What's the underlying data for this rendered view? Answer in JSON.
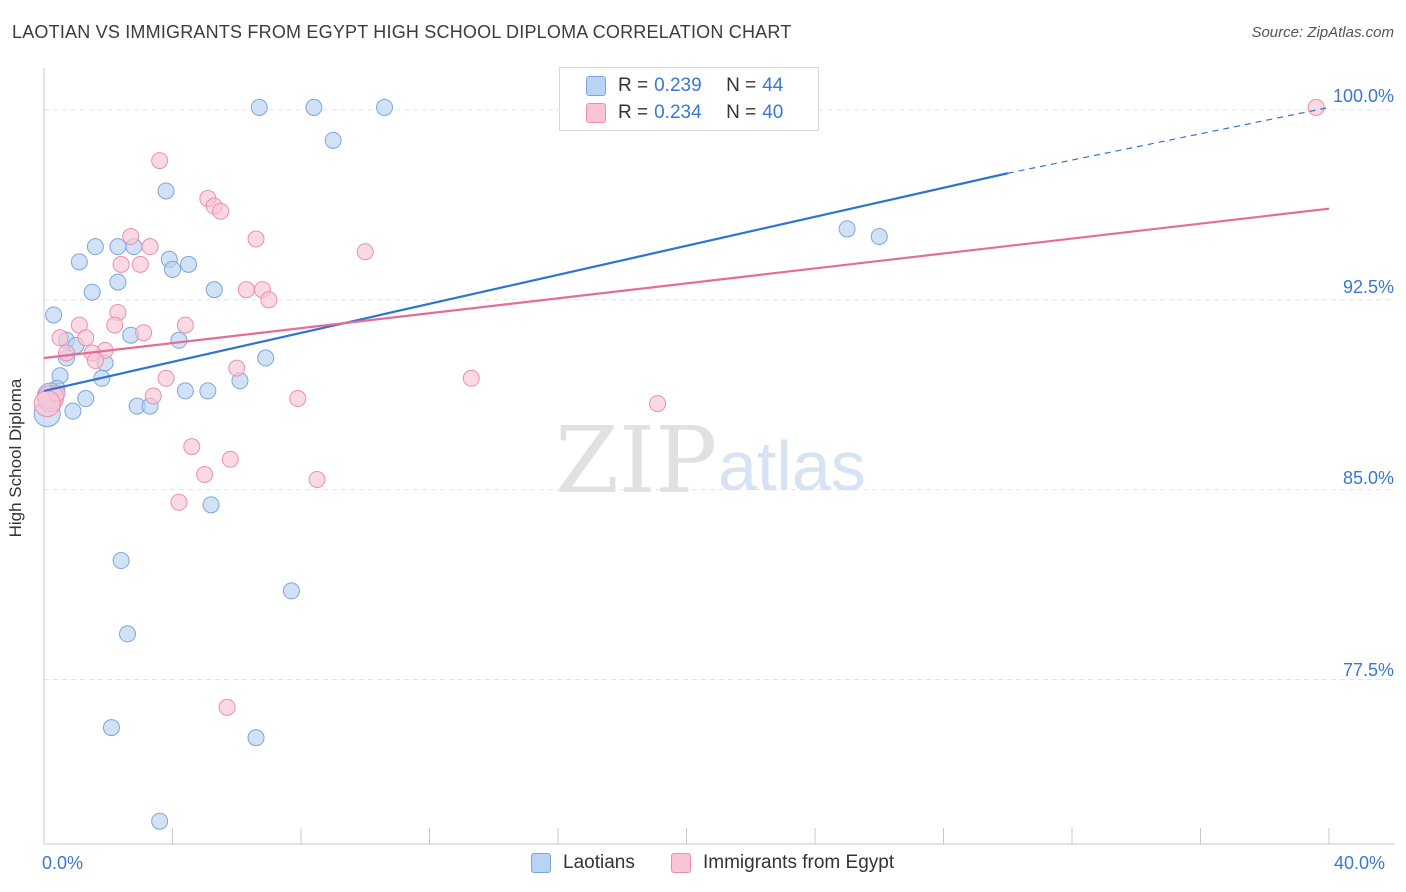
{
  "title": "LAOTIAN VS IMMIGRANTS FROM EGYPT HIGH SCHOOL DIPLOMA CORRELATION CHART",
  "source": "Source: ZipAtlas.com",
  "watermark": {
    "zip": "ZIP",
    "atlas": "atlas"
  },
  "legend": {
    "rows": [
      {
        "r_label": "R = ",
        "r_value": "0.239",
        "n_label": "N = ",
        "n_value": "44"
      },
      {
        "r_label": "R = ",
        "r_value": "0.234",
        "n_label": "N = ",
        "n_value": "40"
      }
    ]
  },
  "colors": {
    "laotian_fill": "#b9d3f3",
    "laotian_stroke": "#7aa6de",
    "laotian_line": "#2e74d0",
    "egypt_fill": "#f9c4d4",
    "egypt_stroke": "#eb8fae",
    "egypt_line": "#e56b99",
    "tick_text": "#3a78d0",
    "grid": "#e4e4e4"
  },
  "chart_data": {
    "type": "scatter",
    "title": "LAOTIAN VS IMMIGRANTS FROM EGYPT HIGH SCHOOL DIPLOMA CORRELATION CHART",
    "xlabel": "",
    "ylabel": "High School Diploma",
    "xlim": [
      0,
      40
    ],
    "ylim": [
      71.0,
      101.5
    ],
    "x_tick_labels": [
      "0.0%",
      "40.0%"
    ],
    "y_ticks": [
      77.5,
      85.0,
      92.5,
      100.0
    ],
    "y_tick_labels": [
      "77.5%",
      "85.0%",
      "92.5%",
      "100.0%"
    ],
    "grid": true,
    "series": [
      {
        "name": "Laotians",
        "R": 0.239,
        "N": 44,
        "trend": {
          "x0": 0,
          "y0": 88.9,
          "x1": 30.0,
          "y1": 97.5,
          "dash_to_x": 40,
          "dash_to_y": 100.1
        },
        "points": [
          [
            6.7,
            100.1
          ],
          [
            8.4,
            100.1
          ],
          [
            10.6,
            100.1
          ],
          [
            9.0,
            98.8
          ],
          [
            3.8,
            96.8
          ],
          [
            1.6,
            94.6
          ],
          [
            2.3,
            94.6
          ],
          [
            2.8,
            94.6
          ],
          [
            1.1,
            94.0
          ],
          [
            3.9,
            94.1
          ],
          [
            4.5,
            93.9
          ],
          [
            4.0,
            93.7
          ],
          [
            2.3,
            93.2
          ],
          [
            1.5,
            92.8
          ],
          [
            5.3,
            92.9
          ],
          [
            0.3,
            91.9
          ],
          [
            2.7,
            91.1
          ],
          [
            4.2,
            90.9
          ],
          [
            0.7,
            90.9
          ],
          [
            1.0,
            90.7
          ],
          [
            0.7,
            90.2
          ],
          [
            1.9,
            90.0
          ],
          [
            6.9,
            90.2
          ],
          [
            0.5,
            89.5
          ],
          [
            1.8,
            89.4
          ],
          [
            6.1,
            89.3
          ],
          [
            0.4,
            89.0
          ],
          [
            4.4,
            88.9
          ],
          [
            5.1,
            88.9
          ],
          [
            1.3,
            88.6
          ],
          [
            2.9,
            88.3
          ],
          [
            3.3,
            88.3
          ],
          [
            0.9,
            88.1
          ],
          [
            0.1,
            88.0
          ],
          [
            5.2,
            84.4
          ],
          [
            2.4,
            82.2
          ],
          [
            7.7,
            81.0
          ],
          [
            2.6,
            79.3
          ],
          [
            2.1,
            75.6
          ],
          [
            6.6,
            75.2
          ],
          [
            3.6,
            71.9
          ],
          [
            25.0,
            95.3
          ],
          [
            26.0,
            95.0
          ],
          [
            0.2,
            88.7
          ]
        ]
      },
      {
        "name": "Immigrants from Egypt",
        "R": 0.234,
        "N": 40,
        "trend": {
          "x0": 0,
          "y0": 90.2,
          "x1": 40,
          "y1": 96.1
        },
        "points": [
          [
            39.6,
            100.1
          ],
          [
            3.6,
            98.0
          ],
          [
            5.1,
            96.5
          ],
          [
            5.3,
            96.2
          ],
          [
            5.5,
            96.0
          ],
          [
            2.7,
            95.0
          ],
          [
            6.6,
            94.9
          ],
          [
            2.4,
            93.9
          ],
          [
            3.0,
            93.9
          ],
          [
            3.3,
            94.6
          ],
          [
            10.0,
            94.4
          ],
          [
            6.3,
            92.9
          ],
          [
            6.8,
            92.9
          ],
          [
            7.0,
            92.5
          ],
          [
            2.3,
            92.0
          ],
          [
            2.2,
            91.5
          ],
          [
            4.4,
            91.5
          ],
          [
            1.1,
            91.5
          ],
          [
            3.1,
            91.2
          ],
          [
            0.5,
            91.0
          ],
          [
            1.3,
            91.0
          ],
          [
            1.9,
            90.5
          ],
          [
            0.7,
            90.4
          ],
          [
            1.5,
            90.4
          ],
          [
            6.0,
            89.8
          ],
          [
            3.8,
            89.4
          ],
          [
            13.3,
            89.4
          ],
          [
            1.6,
            90.1
          ],
          [
            0.2,
            88.6
          ],
          [
            0.4,
            88.8
          ],
          [
            3.4,
            88.7
          ],
          [
            7.9,
            88.6
          ],
          [
            19.1,
            88.4
          ],
          [
            4.6,
            86.7
          ],
          [
            5.8,
            86.2
          ],
          [
            5.0,
            85.6
          ],
          [
            8.5,
            85.4
          ],
          [
            4.2,
            84.5
          ],
          [
            5.7,
            76.4
          ],
          [
            0.1,
            88.4
          ]
        ]
      }
    ]
  }
}
